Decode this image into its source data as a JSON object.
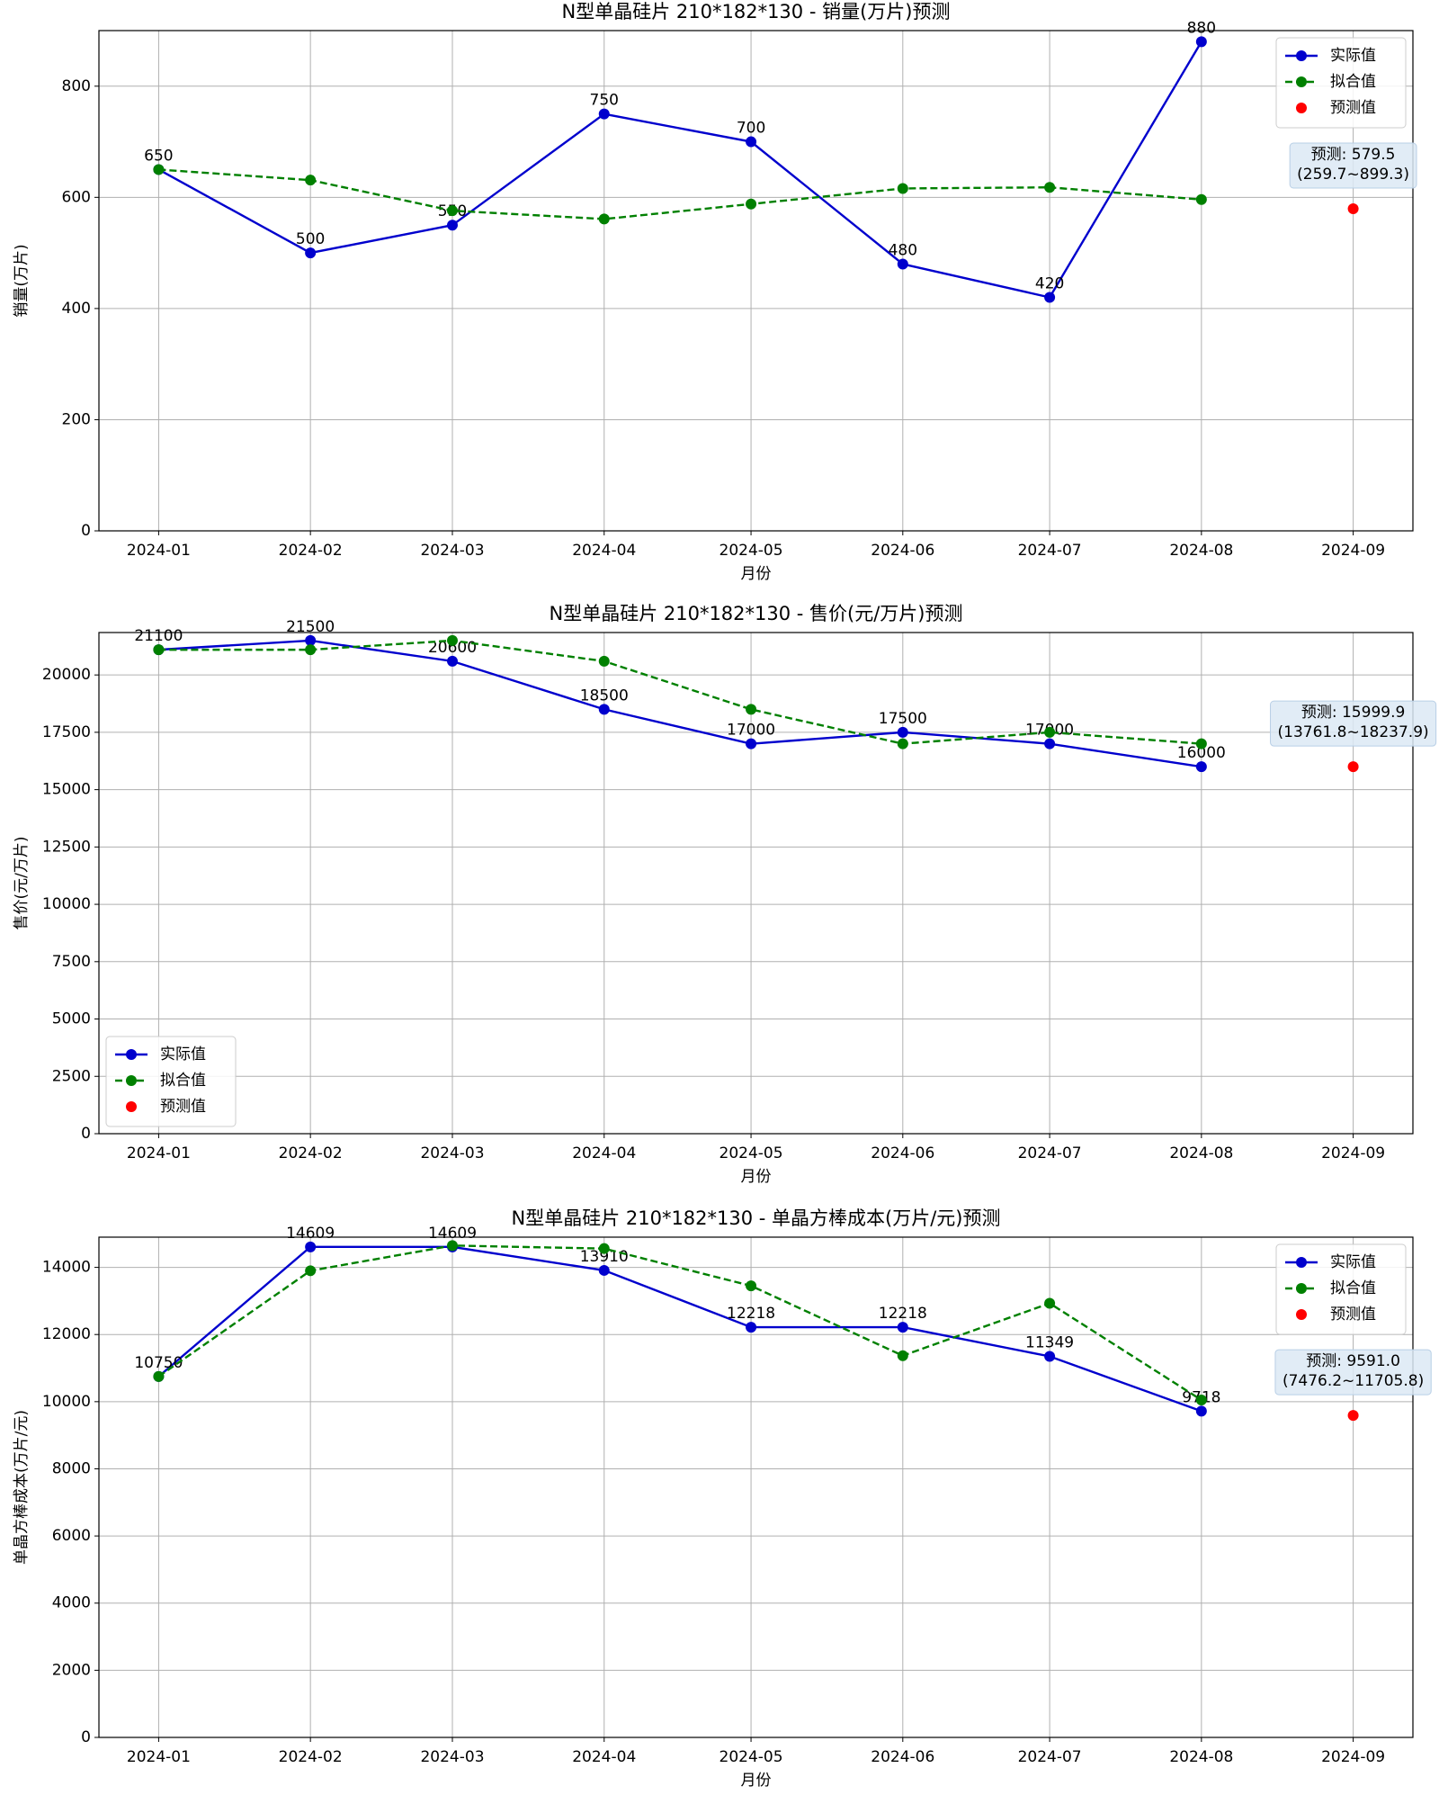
{
  "chart_data": [
    {
      "type": "line",
      "title": "N型单晶硅片 210*182*130 - 销量(万片)预测",
      "xlabel": "月份",
      "ylabel": "销量(万片)",
      "x": [
        "2024-01",
        "2024-02",
        "2024-03",
        "2024-04",
        "2024-05",
        "2024-06",
        "2024-07",
        "2024-08",
        "2024-09"
      ],
      "series": [
        {
          "name": "实际值",
          "color": "#0000cd",
          "linestyle": "solid",
          "labels": true,
          "values": [
            650,
            500,
            550,
            750,
            700,
            480,
            420,
            880,
            null
          ]
        },
        {
          "name": "拟合值",
          "color": "#008000",
          "linestyle": "dashed",
          "values": [
            650,
            631,
            576,
            561,
            588,
            616,
            618,
            596,
            null
          ]
        },
        {
          "name": "预测值",
          "color": "#ff0000",
          "linestyle": "none",
          "values": [
            null,
            null,
            null,
            null,
            null,
            null,
            null,
            null,
            579.5
          ]
        }
      ],
      "annotation": [
        "预测: 579.5",
        "(259.7~899.3)"
      ],
      "ylim": [
        0,
        900
      ],
      "yticks": [
        0,
        200,
        400,
        600,
        800
      ],
      "grid": true,
      "legend": "upper right"
    },
    {
      "type": "line",
      "title": "N型单晶硅片 210*182*130 - 售价(元/万片)预测",
      "xlabel": "月份",
      "ylabel": "售价(元/万片)",
      "x": [
        "2024-01",
        "2024-02",
        "2024-03",
        "2024-04",
        "2024-05",
        "2024-06",
        "2024-07",
        "2024-08",
        "2024-09"
      ],
      "series": [
        {
          "name": "实际值",
          "color": "#0000cd",
          "linestyle": "solid",
          "labels": true,
          "values": [
            21100,
            21500,
            20600,
            18500,
            17000,
            17500,
            17000,
            16000,
            null
          ]
        },
        {
          "name": "拟合值",
          "color": "#008000",
          "linestyle": "dashed",
          "values": [
            21100,
            21100,
            21500,
            20600,
            18500,
            17000,
            17500,
            17000,
            null
          ]
        },
        {
          "name": "预测值",
          "color": "#ff0000",
          "linestyle": "none",
          "values": [
            null,
            null,
            null,
            null,
            null,
            null,
            null,
            null,
            15999.9
          ]
        }
      ],
      "annotation": [
        "预测: 15999.9",
        "(13761.8~18237.9)"
      ],
      "ylim": [
        0,
        21850
      ],
      "yticks": [
        0,
        2500,
        5000,
        7500,
        10000,
        12500,
        15000,
        17500,
        20000
      ],
      "grid": true,
      "legend": "lower left"
    },
    {
      "type": "line",
      "title": "N型单晶硅片 210*182*130 - 单晶方棒成本(万片/元)预测",
      "xlabel": "月份",
      "ylabel": "单晶方棒成本(万片/元)",
      "x": [
        "2024-01",
        "2024-02",
        "2024-03",
        "2024-04",
        "2024-05",
        "2024-06",
        "2024-07",
        "2024-08",
        "2024-09"
      ],
      "series": [
        {
          "name": "实际值",
          "color": "#0000cd",
          "linestyle": "solid",
          "labels": true,
          "values": [
            10750,
            14609,
            14609,
            13910,
            12218,
            12218,
            11349,
            9718,
            null
          ]
        },
        {
          "name": "拟合值",
          "color": "#008000",
          "linestyle": "dashed",
          "values": [
            10750,
            13900,
            14650,
            14560,
            13450,
            11370,
            12930,
            10050,
            null
          ]
        },
        {
          "name": "预测值",
          "color": "#ff0000",
          "linestyle": "none",
          "values": [
            null,
            null,
            null,
            null,
            null,
            null,
            null,
            null,
            9591.0
          ]
        }
      ],
      "annotation": [
        "预测: 9591.0",
        "(7476.2~11705.8)"
      ],
      "ylim": [
        0,
        14900
      ],
      "yticks": [
        0,
        2000,
        4000,
        6000,
        8000,
        10000,
        12000,
        14000
      ],
      "grid": true,
      "legend": "upper right"
    }
  ]
}
